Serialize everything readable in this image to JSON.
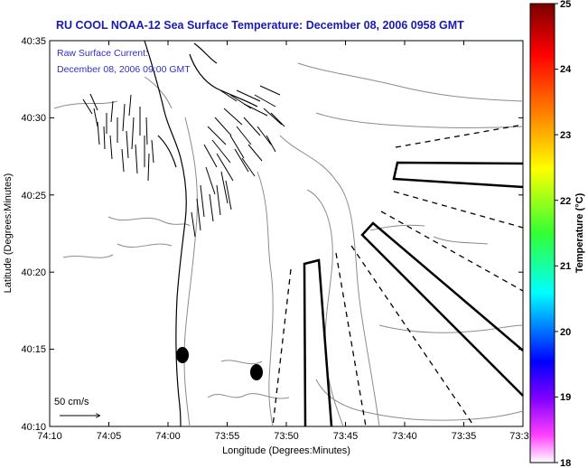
{
  "title": "RU COOL  NOAA-12  Sea Surface Temperature:  December 08, 2006 0958 GMT",
  "annotation": {
    "line1": "Raw Surface Current:",
    "line2": "December 08, 2006 09:00 GMT"
  },
  "x_axis": {
    "label": "Longitude (Degrees:Minutes)",
    "ticks": [
      "74:10",
      "74:05",
      "74:00",
      "73:55",
      "73:50",
      "73:45",
      "73:40",
      "73:35",
      "73:3"
    ]
  },
  "y_axis": {
    "label": "Latitude (Degrees:Minutes)",
    "ticks": [
      "40:35",
      "40:30",
      "40:25",
      "40:20",
      "40:15",
      "40:10"
    ]
  },
  "colorbar": {
    "label": "Temperature (°C)",
    "ticks": [
      "25",
      "24",
      "23",
      "22",
      "21",
      "20",
      "19",
      "18"
    ],
    "colors": [
      "#8b0000",
      "#ff0000",
      "#ff8000",
      "#ffff00",
      "#00ff00",
      "#00ffff",
      "#0000ff",
      "#8000ff",
      "#ff00ff",
      "#ffffff"
    ]
  },
  "scale_label": "50 cm/s",
  "colors": {
    "title": "#1a1ab4",
    "annotation": "#3030c0",
    "land": "#ffffff",
    "contour": "#888888",
    "coast": "#000000"
  }
}
